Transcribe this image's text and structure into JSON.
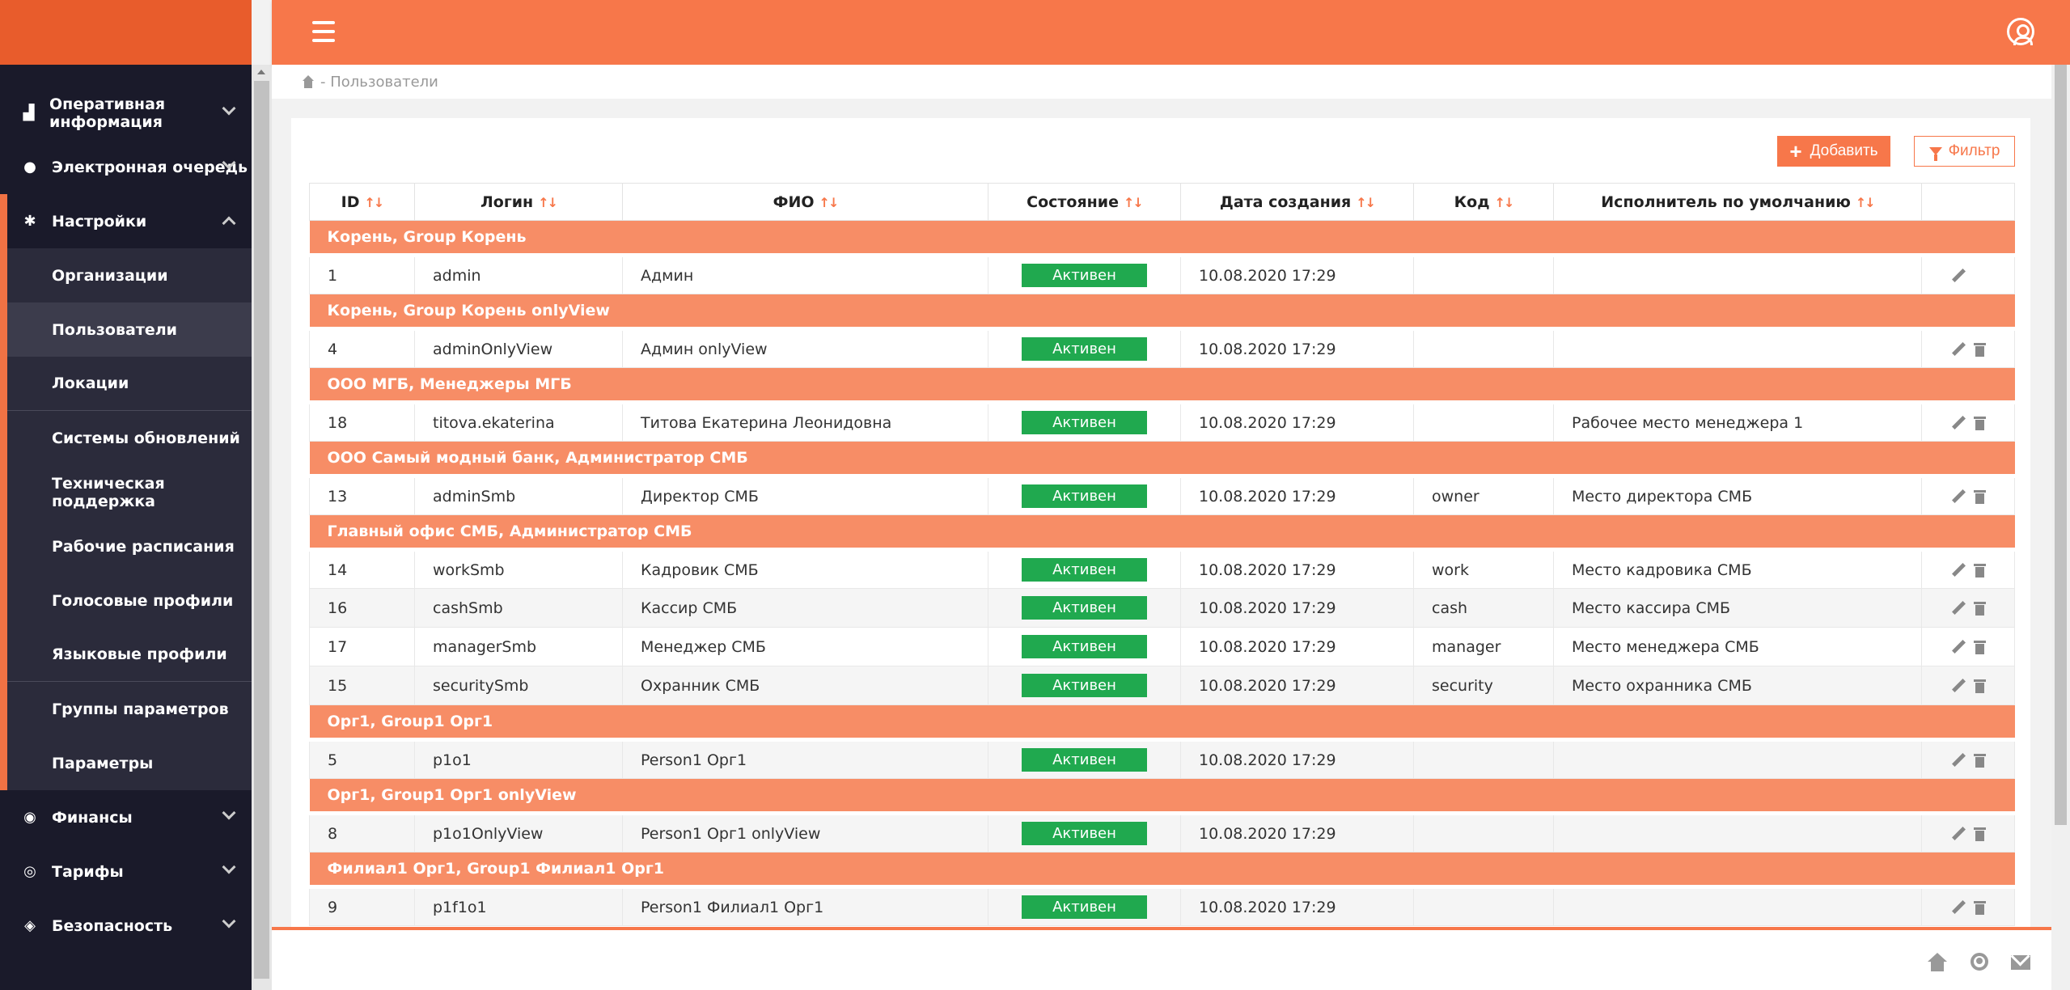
{
  "sidebar": {
    "items": [
      {
        "label": "Оперативная информация",
        "icon": "chart-icon"
      },
      {
        "label": "Электронная очередь",
        "icon": "users-icon"
      },
      {
        "label": "Настройки",
        "icon": "gear-icon"
      },
      {
        "label": "Финансы",
        "icon": "coins-icon"
      },
      {
        "label": "Тарифы",
        "icon": "tariff-icon"
      },
      {
        "label": "Безопасность",
        "icon": "shield-icon"
      }
    ],
    "settings_sub": [
      "Организации",
      "Пользователи",
      "Локации",
      "Системы обновлений",
      "Техническая поддержка",
      "Рабочие расписания",
      "Голосовые профили",
      "Языковые профили",
      "Группы параметров",
      "Параметры"
    ]
  },
  "breadcrumb": {
    "text": "- Пользователи"
  },
  "toolbar": {
    "add_label": "Добавить",
    "filter_label": "Фильтр"
  },
  "table": {
    "columns": [
      "ID",
      "Логин",
      "ФИО",
      "Состояние",
      "Дата создания",
      "Код",
      "Исполнитель по умолчанию"
    ],
    "status_label": "Активен",
    "groups": [
      {
        "name": "Корень, Group Корень",
        "rows": [
          {
            "id": "1",
            "login": "admin",
            "fio": "Админ",
            "date": "10.08.2020 17:29",
            "code": "",
            "executor": ""
          }
        ]
      },
      {
        "name": "Корень, Group Корень onlyView",
        "rows": [
          {
            "id": "4",
            "login": "adminOnlyView",
            "fio": "Админ onlyView",
            "date": "10.08.2020 17:29",
            "code": "",
            "executor": ""
          }
        ]
      },
      {
        "name": "ООО МГБ, Менеджеры МГБ",
        "rows": [
          {
            "id": "18",
            "login": "titova.ekaterina",
            "fio": "Титова Екатерина Леонидовна",
            "date": "10.08.2020 17:29",
            "code": "",
            "executor": "Рабочее место менеджера 1"
          }
        ]
      },
      {
        "name": "ООО Самый модный банк, Администратор СМБ",
        "rows": [
          {
            "id": "13",
            "login": "adminSmb",
            "fio": "Директор СМБ",
            "date": "10.08.2020 17:29",
            "code": "owner",
            "executor": "Место директора СМБ"
          }
        ]
      },
      {
        "name": "Главный офис СМБ, Администратор СМБ",
        "rows": [
          {
            "id": "14",
            "login": "workSmb",
            "fio": "Кадровик СМБ",
            "date": "10.08.2020 17:29",
            "code": "work",
            "executor": "Место кадровика СМБ"
          },
          {
            "id": "16",
            "login": "cashSmb",
            "fio": "Кассир СМБ",
            "date": "10.08.2020 17:29",
            "code": "cash",
            "executor": "Место кассира СМБ"
          },
          {
            "id": "17",
            "login": "managerSmb",
            "fio": "Менеджер СМБ",
            "date": "10.08.2020 17:29",
            "code": "manager",
            "executor": "Место менеджера СМБ"
          },
          {
            "id": "15",
            "login": "securitySmb",
            "fio": "Охранник СМБ",
            "date": "10.08.2020 17:29",
            "code": "security",
            "executor": "Место охранника СМБ"
          }
        ]
      },
      {
        "name": "Орг1, Group1 Орг1",
        "rows": [
          {
            "id": "5",
            "login": "p1o1",
            "fio": "Person1 Орг1",
            "date": "10.08.2020 17:29",
            "code": "",
            "executor": ""
          }
        ]
      },
      {
        "name": "Орг1, Group1 Орг1 onlyView",
        "rows": [
          {
            "id": "8",
            "login": "p1o1OnlyView",
            "fio": "Person1 Орг1 onlyView",
            "date": "10.08.2020 17:29",
            "code": "",
            "executor": ""
          }
        ]
      },
      {
        "name": "Филиал1 Орг1, Group1 Филиал1 Орг1",
        "rows": [
          {
            "id": "9",
            "login": "p1f1o1",
            "fio": "Person1 Филиал1 Орг1",
            "date": "10.08.2020 17:29",
            "code": "",
            "executor": ""
          }
        ]
      }
    ]
  },
  "colors": {
    "accent": "#f7774a",
    "group_row": "#f78d66",
    "status": "#20a94f",
    "sidebar": "#1a1a2a"
  }
}
